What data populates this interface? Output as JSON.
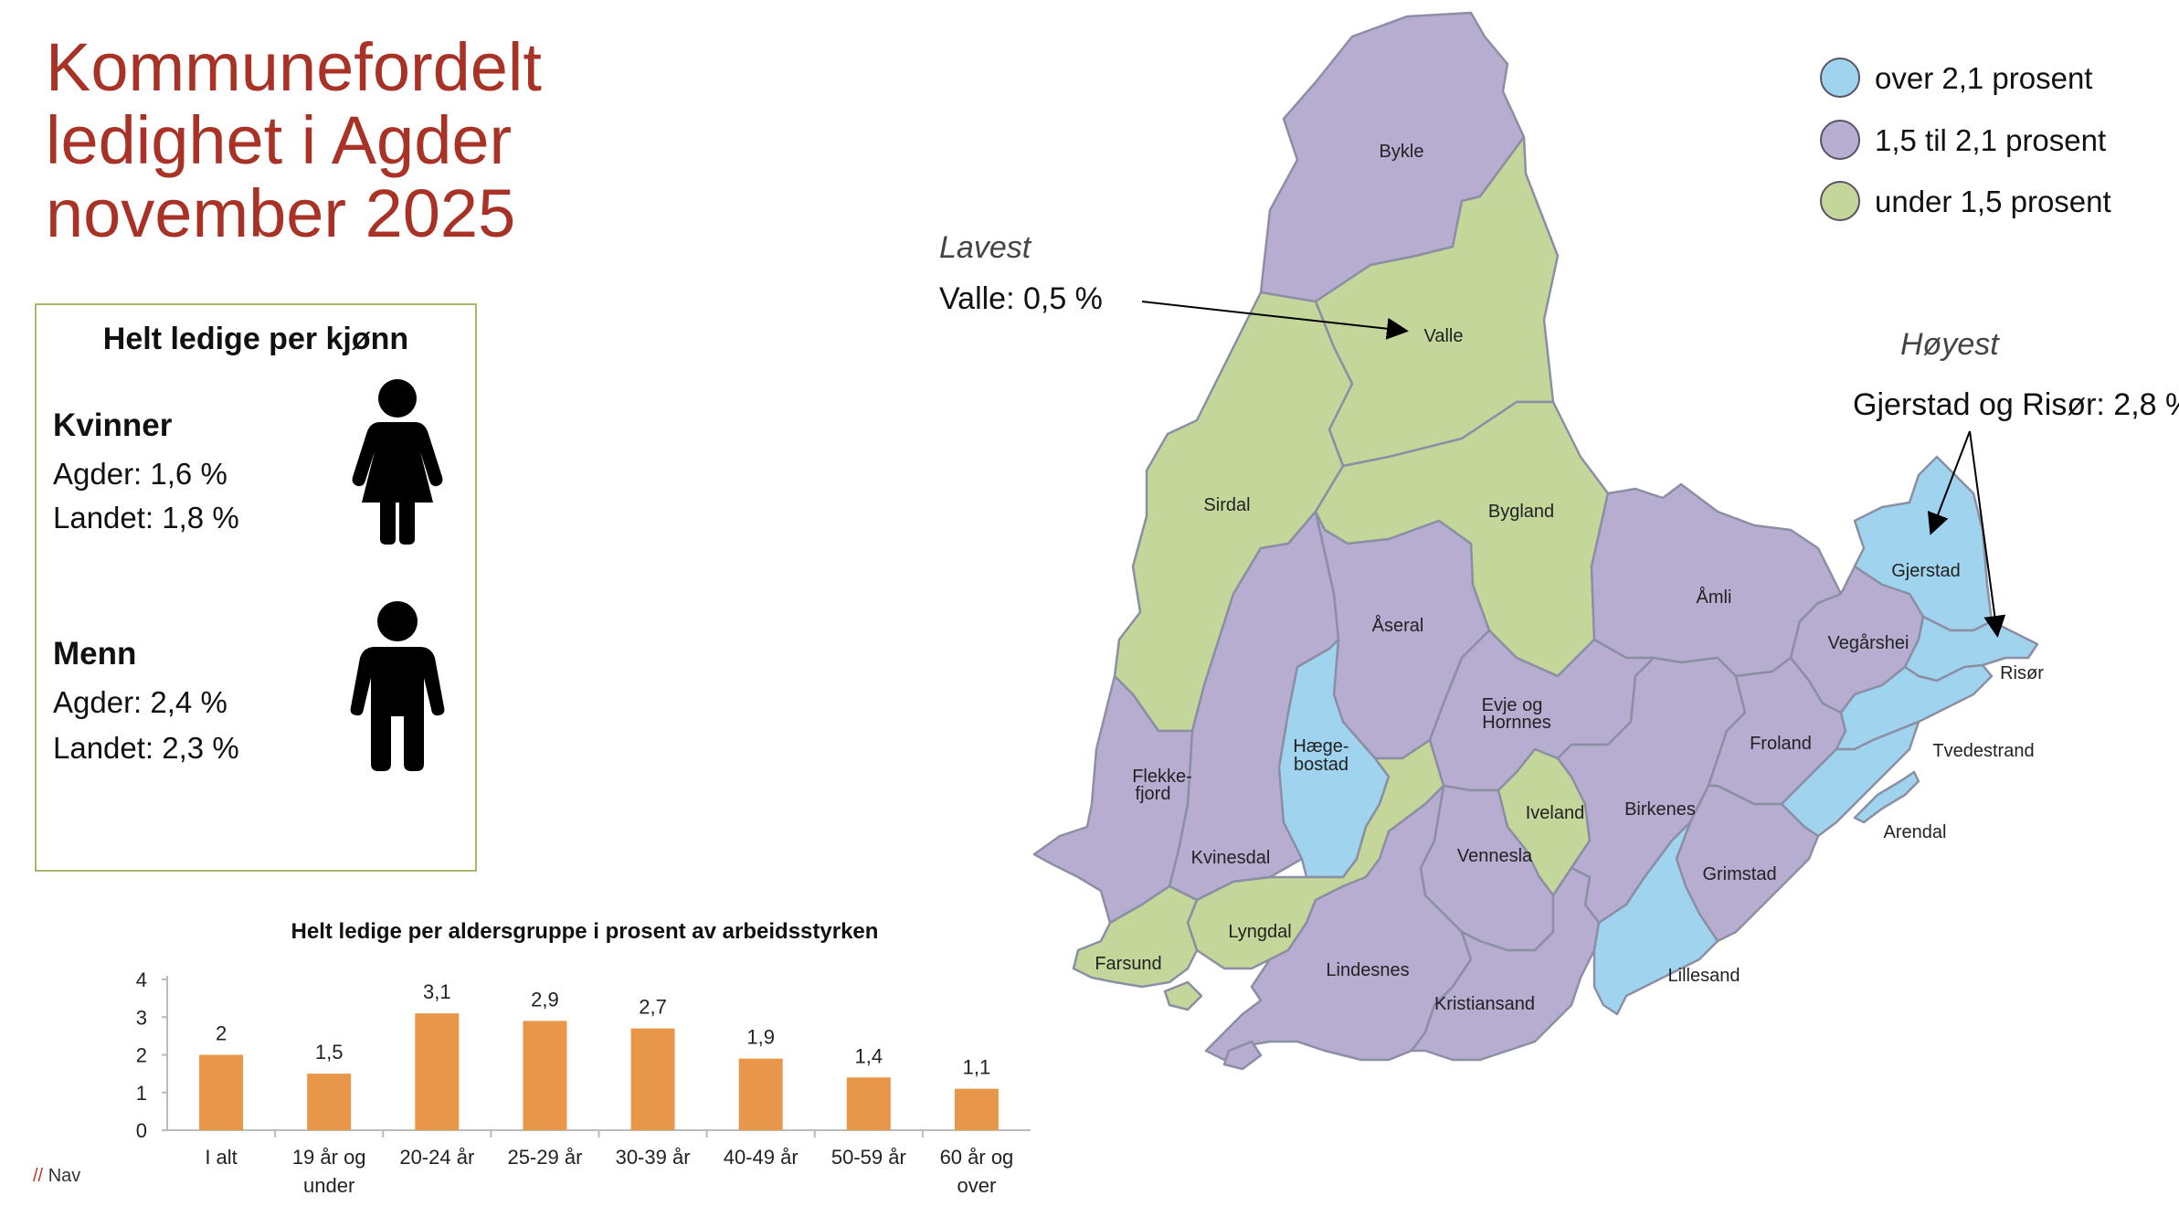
{
  "title": {
    "line1": "Kommunefordelt",
    "line2": "ledighet i Agder",
    "line3": "november 2025"
  },
  "gender": {
    "heading": "Helt ledige per kjønn",
    "women": {
      "label": "Kvinner",
      "agder": "Agder: 1,6 %",
      "landet": "Landet: 1,8 %",
      "icon": "woman-icon"
    },
    "men": {
      "label": "Menn",
      "agder": "Agder: 2,4 %",
      "landet": "Landet: 2,3 %",
      "icon": "man-icon"
    }
  },
  "chart_data": {
    "type": "bar",
    "title": "Helt ledige per aldersgruppe i prosent av arbeidsstyrken",
    "categories": [
      "I alt",
      "19 år og under",
      "20-24 år",
      "25-29 år",
      "30-39 år",
      "40-49 år",
      "50-59 år",
      "60 år og over"
    ],
    "category_lines": [
      [
        "I alt"
      ],
      [
        "19 år og",
        "under"
      ],
      [
        "20-24 år"
      ],
      [
        "25-29 år"
      ],
      [
        "30-39 år"
      ],
      [
        "40-49 år"
      ],
      [
        "50-59 år"
      ],
      [
        "60 år og",
        "over"
      ]
    ],
    "values": [
      2,
      1.5,
      3.1,
      2.9,
      2.7,
      1.9,
      1.4,
      1.1
    ],
    "value_labels": [
      "2",
      "1,5",
      "3,1",
      "2,9",
      "2,7",
      "1,9",
      "1,4",
      "1,1"
    ],
    "yticks": [
      "0",
      "1",
      "2",
      "3",
      "4"
    ],
    "ylim": [
      0,
      4
    ],
    "xlabel": "",
    "ylabel": "",
    "color": "#e8974a",
    "grid": false
  },
  "legend": [
    {
      "label": "over 2,1 prosent",
      "color": "#9fd3ee"
    },
    {
      "label": "1,5 til 2,1 prosent",
      "color": "#b7add1"
    },
    {
      "label": "under 1,5 prosent",
      "color": "#c5d69a"
    }
  ],
  "callouts": {
    "lowest_heading": "Lavest",
    "lowest_text": "Valle: 0,5 %",
    "highest_heading": "Høyest",
    "highest_text": "Gjerstad og Risør: 2,8 %"
  },
  "municipalities": [
    {
      "name": "Bykle",
      "category": "mid"
    },
    {
      "name": "Valle",
      "category": "low"
    },
    {
      "name": "Sirdal",
      "category": "low"
    },
    {
      "name": "Bygland",
      "category": "low"
    },
    {
      "name": "Åseral",
      "category": "mid"
    },
    {
      "name": "Åmli",
      "category": "mid"
    },
    {
      "name": "Gjerstad",
      "category": "high"
    },
    {
      "name": "Vegårshei",
      "category": "mid"
    },
    {
      "name": "Risør",
      "category": "high"
    },
    {
      "name": "Evje og Hornnes",
      "category": "mid"
    },
    {
      "name": "Hægebostad",
      "category": "high"
    },
    {
      "name": "Flekkefjord",
      "category": "mid"
    },
    {
      "name": "Kvinesdal",
      "category": "mid"
    },
    {
      "name": "Iveland",
      "category": "low"
    },
    {
      "name": "Birkenes",
      "category": "mid"
    },
    {
      "name": "Froland",
      "category": "mid"
    },
    {
      "name": "Tvedestrand",
      "category": "high"
    },
    {
      "name": "Arendal",
      "category": "high"
    },
    {
      "name": "Vennesla",
      "category": "mid"
    },
    {
      "name": "Grimstad",
      "category": "mid"
    },
    {
      "name": "Lyngdal",
      "category": "low"
    },
    {
      "name": "Farsund",
      "category": "low"
    },
    {
      "name": "Lindesnes",
      "category": "mid"
    },
    {
      "name": "Kristiansand",
      "category": "mid"
    },
    {
      "name": "Lillesand",
      "category": "high"
    }
  ],
  "map_labels": {
    "bykle": "Bykle",
    "valle": "Valle",
    "sirdal": "Sirdal",
    "bygland": "Bygland",
    "aseral": "Åseral",
    "amli": "Åmli",
    "gjerstad": "Gjerstad",
    "vegarshei": "Vegårshei",
    "risor": "Risør",
    "evje1": "Evje og",
    "evje2": "Hornnes",
    "hage1": "Hæge-",
    "hage2": "bostad",
    "flekke1": "Flekke-",
    "flekke2": "fjord",
    "kvinesdal": "Kvinesdal",
    "iveland": "Iveland",
    "birkenes": "Birkenes",
    "froland": "Froland",
    "tvedestrand": "Tvedestrand",
    "arendal": "Arendal",
    "vennesla": "Vennesla",
    "grimstad": "Grimstad",
    "lyngdal": "Lyngdal",
    "farsund": "Farsund",
    "lindesnes": "Lindesnes",
    "kristiansand": "Kristiansand",
    "lillesand": "Lillesand"
  },
  "footer": {
    "slash": "//",
    "brand": "Nav"
  }
}
